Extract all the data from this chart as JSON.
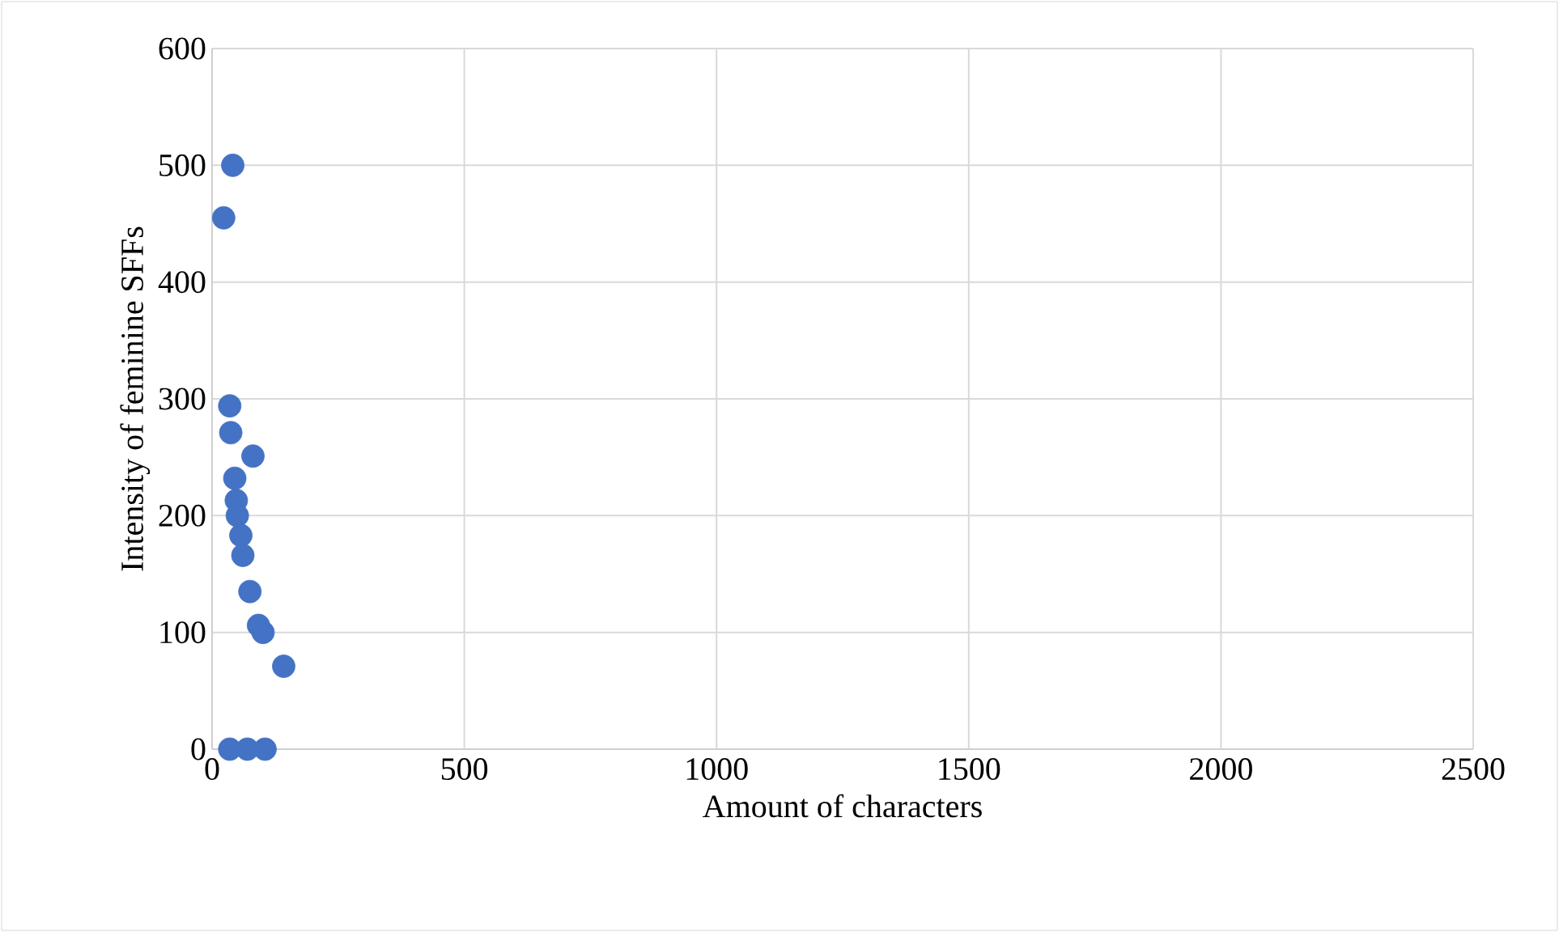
{
  "chart_data": {
    "type": "scatter",
    "xlabel": "Amount of characters",
    "ylabel": "Intensity of feminine SFFs",
    "x": [
      41,
      23,
      35,
      37,
      81,
      45,
      48,
      50,
      57,
      61,
      75,
      92,
      101,
      142,
      35,
      70,
      105
    ],
    "values": [
      500,
      455,
      294,
      271,
      251,
      232,
      213,
      200,
      183,
      166,
      135,
      106,
      100,
      71,
      0,
      0,
      0
    ],
    "color": "#4472c4",
    "marker": "circle",
    "xlim": [
      0,
      2500
    ],
    "xticks": [
      0,
      500,
      1000,
      1500,
      2000,
      2500
    ],
    "ylim": [
      0,
      600
    ],
    "yticks": [
      0,
      100,
      200,
      300,
      400,
      500,
      600
    ],
    "grid": true
  }
}
